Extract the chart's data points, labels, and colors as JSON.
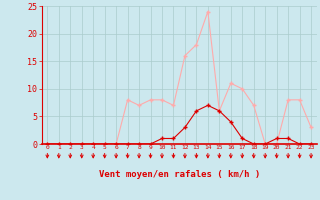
{
  "x": [
    0,
    1,
    2,
    3,
    4,
    5,
    6,
    7,
    8,
    9,
    10,
    11,
    12,
    13,
    14,
    15,
    16,
    17,
    18,
    19,
    20,
    21,
    22,
    23
  ],
  "rafales": [
    0,
    0,
    0,
    0,
    0,
    0,
    0,
    8,
    7,
    8,
    8,
    7,
    16,
    18,
    24,
    6,
    11,
    10,
    7,
    0,
    0,
    8,
    8,
    3
  ],
  "vent_moyen": [
    0,
    0,
    0,
    0,
    0,
    0,
    0,
    0,
    0,
    0,
    1,
    1,
    3,
    6,
    7,
    6,
    4,
    1,
    0,
    0,
    1,
    1,
    0,
    0
  ],
  "line_color_rafales": "#ffaaaa",
  "line_color_vent": "#dd0000",
  "bg_color": "#cce8ee",
  "grid_color": "#aacccc",
  "xlabel": "Vent moyen/en rafales ( km/h )",
  "xlabel_color": "#dd0000",
  "tick_color": "#dd0000",
  "ylim": [
    0,
    25
  ],
  "yticks": [
    0,
    5,
    10,
    15,
    20,
    25
  ],
  "xlim": [
    -0.5,
    23.5
  ]
}
